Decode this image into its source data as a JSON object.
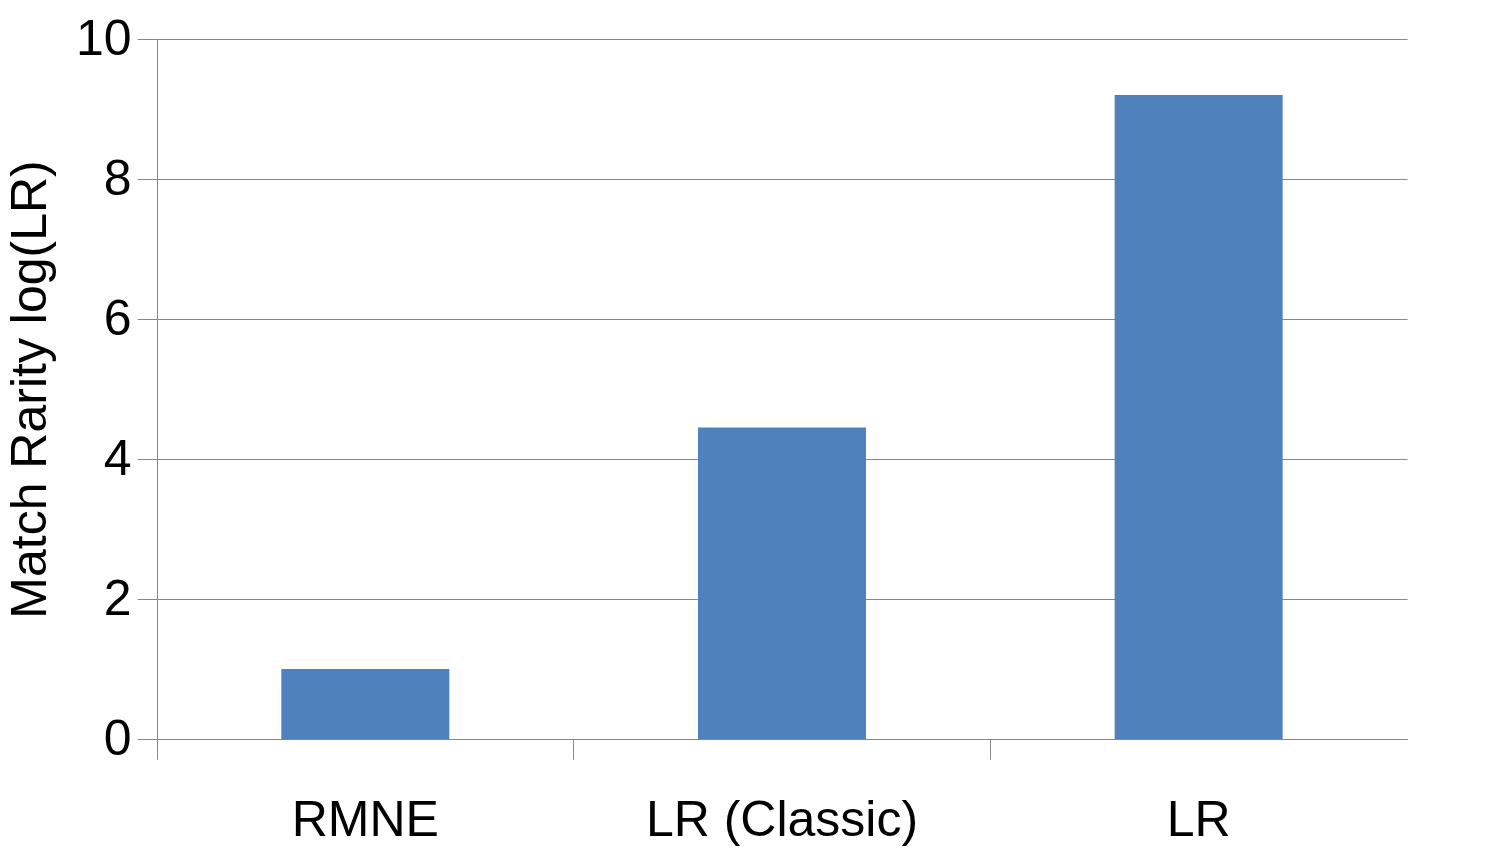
{
  "chart_data": {
    "type": "bar",
    "ylabel": "Match Rarity log(LR)",
    "categories": [
      "RMNE",
      "LR (Classic)",
      "LR"
    ],
    "values": [
      1.0,
      4.45,
      9.2
    ],
    "color": "#4f81bd",
    "ylim": [
      0,
      10
    ],
    "yticks": [
      0,
      2,
      4,
      6,
      8,
      10
    ],
    "grid": "y"
  }
}
